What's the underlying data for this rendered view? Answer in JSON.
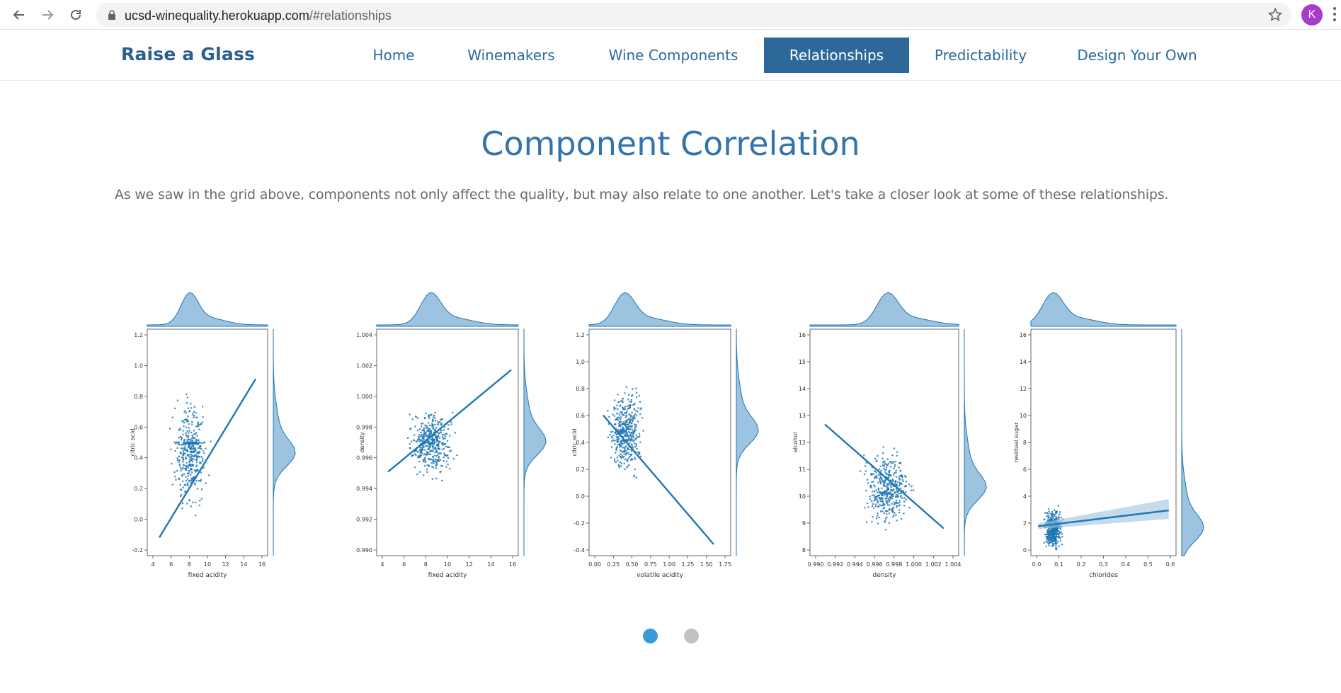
{
  "browser": {
    "url_host": "ucsd-winequality.herokuapp.com",
    "url_path": "/#relationships",
    "profile_initial": "K",
    "icons": [
      "back-arrow-icon",
      "forward-arrow-icon",
      "reload-icon",
      "lock-icon",
      "star-icon",
      "kebab-menu-icon"
    ]
  },
  "site": {
    "brand": "Raise a Glass",
    "menu": [
      {
        "label": "Home",
        "active": false
      },
      {
        "label": "Winemakers",
        "active": false
      },
      {
        "label": "Wine Components",
        "active": false
      },
      {
        "label": "Relationships",
        "active": true
      },
      {
        "label": "Predictability",
        "active": false
      },
      {
        "label": "Design Your Own",
        "active": false
      }
    ]
  },
  "section": {
    "title": "Component Correlation",
    "intro": "As we saw in the grid above, components not only affect the quality, but may also relate to one another. Let's take a closer look at some of these relationships."
  },
  "plots": [
    {
      "xlabel": "fixed acidity",
      "ylabel": "citric acid",
      "xticks": [
        "4",
        "6",
        "8",
        "10",
        "12",
        "14",
        "16"
      ],
      "yticks": [
        "-0.2",
        "0.0",
        "0.2",
        "0.4",
        "0.6",
        "0.8",
        "1.0",
        "1.2"
      ]
    },
    {
      "xlabel": "fixed acidity",
      "ylabel": "density",
      "xticks": [
        "4",
        "6",
        "8",
        "10",
        "12",
        "14",
        "16"
      ],
      "yticks": [
        "0.990",
        "0.992",
        "0.994",
        "0.996",
        "0.998",
        "1.000",
        "1.002",
        "1.004"
      ]
    },
    {
      "xlabel": "volatile acidity",
      "ylabel": "citric acid",
      "xticks": [
        "0.00",
        "0.25",
        "0.50",
        "0.75",
        "1.00",
        "1.25",
        "1.50",
        "1.75"
      ],
      "yticks": [
        "-0.4",
        "-0.2",
        "0.0",
        "0.2",
        "0.4",
        "0.6",
        "0.8",
        "1.0",
        "1.2"
      ]
    },
    {
      "xlabel": "density",
      "ylabel": "alcohol",
      "xticks": [
        "0.990",
        "0.992",
        "0.994",
        "0.996",
        "0.998",
        "1.000",
        "1.002",
        "1.004"
      ],
      "yticks": [
        "8",
        "9",
        "10",
        "11",
        "12",
        "13",
        "14",
        "15",
        "16"
      ]
    },
    {
      "xlabel": "chlorides",
      "ylabel": "residual sugar",
      "xticks": [
        "0.0",
        "0.1",
        "0.2",
        "0.3",
        "0.4",
        "0.5",
        "0.6"
      ],
      "yticks": [
        "0",
        "2",
        "4",
        "6",
        "8",
        "10",
        "12",
        "14",
        "16"
      ]
    }
  ],
  "colors": {
    "accent": "#2e6899",
    "brand": "#2b5f8e",
    "title": "#3274ab",
    "point": "#1f77b4",
    "hist": "#9cc3df",
    "dot_active": "#3a9ad9",
    "dot_inactive": "#c2c2c2"
  },
  "carousel": {
    "count": 2,
    "active_index": 0
  }
}
